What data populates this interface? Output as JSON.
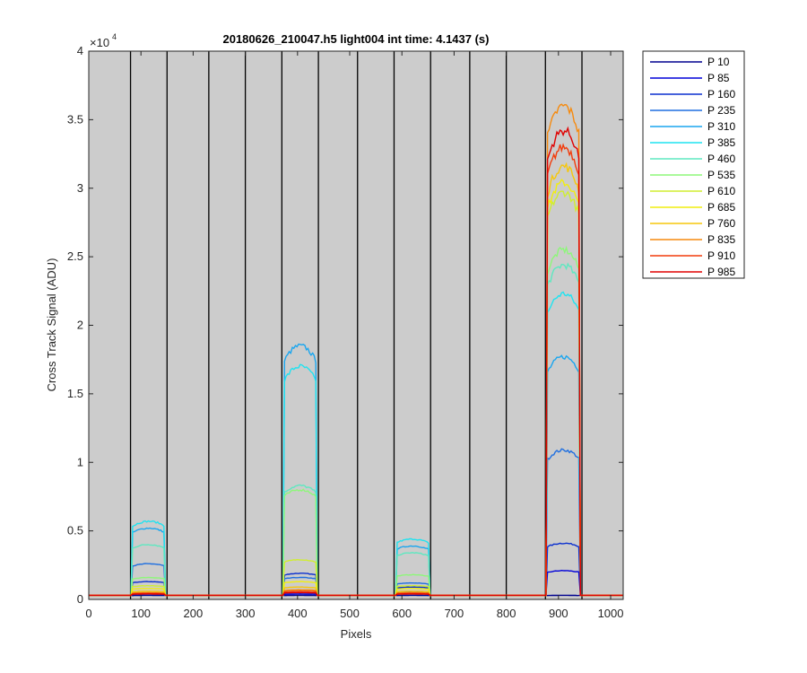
{
  "chart_data": {
    "type": "line",
    "title": "20180626_210047.h5  light004   int time: 4.1437 (s)",
    "xlabel": "Pixels",
    "ylabel": "Cross Track Signal (ADU)",
    "y_exponent_label": "×10",
    "y_exponent_power": "4",
    "xlim": [
      0,
      1024
    ],
    "ylim": [
      0,
      40000
    ],
    "x_ticks": [
      0,
      100,
      200,
      300,
      400,
      500,
      600,
      700,
      800,
      900,
      1000
    ],
    "x_tick_labels": [
      "0",
      "100",
      "200",
      "300",
      "400",
      "500",
      "600",
      "700",
      "800",
      "900",
      "1000"
    ],
    "y_ticks": [
      0,
      5000,
      10000,
      15000,
      20000,
      25000,
      30000,
      35000,
      40000
    ],
    "y_tick_labels": [
      "0",
      "0.5",
      "1",
      "1.5",
      "2",
      "2.5",
      "3",
      "3.5",
      "4"
    ],
    "vertical_lines": [
      80,
      150,
      230,
      300,
      370,
      440,
      515,
      585,
      655,
      730,
      800,
      875,
      945
    ],
    "background_color": "#cccccc",
    "grid": false,
    "legend_position": "outside-right",
    "bands": [
      {
        "start": 80,
        "end": 150
      },
      {
        "start": 370,
        "end": 440
      },
      {
        "start": 585,
        "end": 655
      },
      {
        "start": 875,
        "end": 945
      }
    ],
    "baseline": 300,
    "series": [
      {
        "name": "P 10",
        "color": "#00008f",
        "levels": [
          300,
          300,
          300,
          300
        ]
      },
      {
        "name": "P 85",
        "color": "#0000d9",
        "levels": [
          400,
          400,
          500,
          2100
        ]
      },
      {
        "name": "P 160",
        "color": "#0a2fcf",
        "levels": [
          1300,
          1900,
          900,
          4100
        ]
      },
      {
        "name": "P 235",
        "color": "#1f6fe0",
        "levels": [
          2600,
          1600,
          1200,
          10900
        ]
      },
      {
        "name": "P 310",
        "color": "#1aa6ef",
        "levels": [
          5200,
          18500,
          3900,
          17700
        ]
      },
      {
        "name": "P 385",
        "color": "#1fe3f0",
        "levels": [
          5700,
          17000,
          4400,
          22300
        ]
      },
      {
        "name": "P 460",
        "color": "#5fe8c0",
        "levels": [
          4000,
          8300,
          3400,
          24400
        ]
      },
      {
        "name": "P 535",
        "color": "#8ef77a",
        "levels": [
          1600,
          8000,
          1800,
          25500
        ]
      },
      {
        "name": "P 610",
        "color": "#d0ee30",
        "levels": [
          1000,
          2900,
          1000,
          29700
        ]
      },
      {
        "name": "P 685",
        "color": "#f1ee0f",
        "levels": [
          800,
          1300,
          800,
          30400
        ]
      },
      {
        "name": "P 760",
        "color": "#f6c70c",
        "levels": [
          600,
          900,
          600,
          31600
        ]
      },
      {
        "name": "P 835",
        "color": "#f68a0e",
        "levels": [
          500,
          700,
          500,
          36000
        ]
      },
      {
        "name": "P 910",
        "color": "#f23c0c",
        "levels": [
          450,
          600,
          450,
          33000
        ]
      },
      {
        "name": "P 985",
        "color": "#e00000",
        "levels": [
          400,
          500,
          400,
          34200
        ]
      }
    ]
  }
}
